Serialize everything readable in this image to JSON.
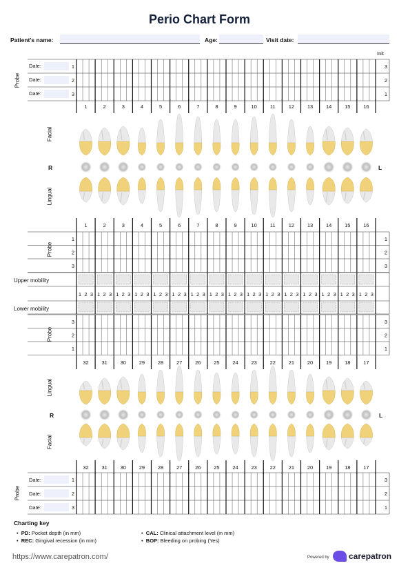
{
  "title": "Perio Chart Form",
  "patient": {
    "name_label": "Patient's name:",
    "age_label": "Age:",
    "visit_label": "Visit date:"
  },
  "init_label": "Init",
  "probe_label": "Probe",
  "date_label": "Date:",
  "row_numbers": [
    "1",
    "2",
    "3"
  ],
  "upper_teeth": [
    "1",
    "2",
    "3",
    "4",
    "5",
    "6",
    "7",
    "8",
    "9",
    "10",
    "11",
    "12",
    "13",
    "14",
    "15",
    "16"
  ],
  "lower_teeth": [
    "32",
    "31",
    "30",
    "29",
    "28",
    "27",
    "26",
    "25",
    "24",
    "23",
    "22",
    "21",
    "20",
    "19",
    "18",
    "17"
  ],
  "facial_label": "Facial",
  "lingual_label": "Lingual",
  "right_label": "R",
  "left_label": "L",
  "upper_mobility_label": "Upper mobility",
  "lower_mobility_label": "Lower mobility",
  "mobility_sites": [
    "1",
    "2",
    "3"
  ],
  "charting_key": {
    "title": "Charting key",
    "items": [
      {
        "abbr": "PD:",
        "text": "Pocket depth (in mm)"
      },
      {
        "abbr": "REC:",
        "text": "Gingival recession (in mm)"
      },
      {
        "abbr": "CAL:",
        "text": "Clinical attachment level (in mm)"
      },
      {
        "abbr": "BOP:",
        "text": "Bleeding on probing (Yes)"
      }
    ]
  },
  "footer": {
    "url": "https://www.carepatron.com/",
    "powered_by": "Powered by",
    "brand": "carepatron"
  },
  "colors": {
    "tooth_crown": "#f0d27a",
    "tooth_root": "#e9e9e9",
    "field_bg": "#eef0fb",
    "grid_line": "#333333",
    "brand": "#6b4de6"
  }
}
